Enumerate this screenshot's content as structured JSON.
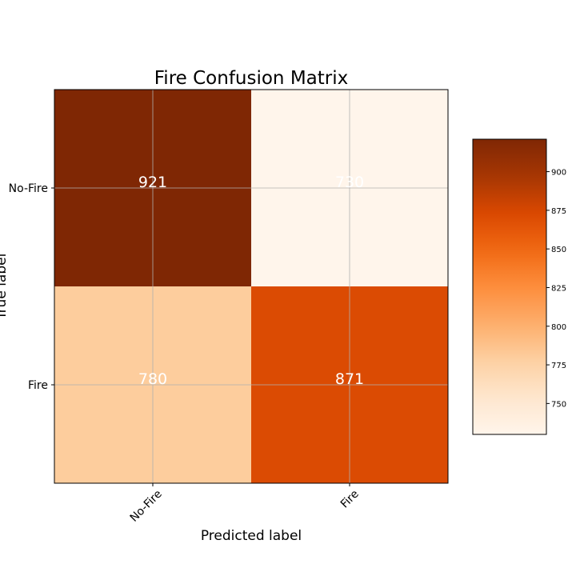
{
  "chart_data": {
    "type": "heatmap",
    "title": "Fire Confusion Matrix",
    "xlabel": "Predicted label",
    "ylabel": "True label",
    "x_categories": [
      "No-Fire",
      "Fire"
    ],
    "y_categories": [
      "No-Fire",
      "Fire"
    ],
    "values": [
      [
        921,
        730
      ],
      [
        780,
        871
      ]
    ],
    "cell_labels": [
      [
        "921",
        "730"
      ],
      [
        "780",
        "871"
      ]
    ],
    "colormap": "Oranges",
    "color_range": [
      730,
      921
    ],
    "colorbar_ticks": [
      750,
      775,
      800,
      825,
      850,
      875,
      900
    ],
    "colorbar_tick_labels": [
      "750",
      "775",
      "800",
      "825",
      "850",
      "875",
      "900"
    ],
    "grid": true,
    "x_tick_rotation_deg": 45,
    "text_color": "#ffffff"
  }
}
